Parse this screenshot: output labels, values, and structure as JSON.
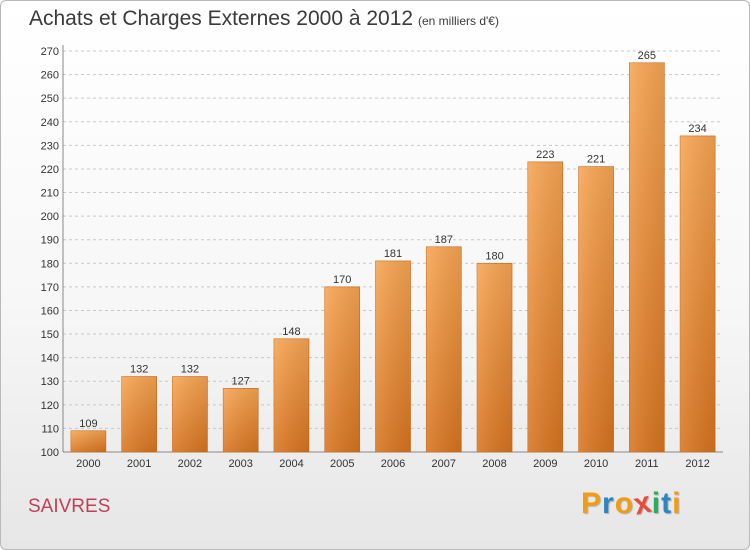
{
  "header": {
    "title": "Achats et Charges Externes 2000 à 2012",
    "subtitle": "(en milliers d'€)"
  },
  "footer": {
    "commune": "SAIVRES",
    "logo": {
      "letters": [
        "P",
        "r",
        "o",
        "x",
        "i",
        "t",
        "i"
      ],
      "colors": [
        "#f39c12",
        "#2e86c1",
        "#f39c12",
        "#e74c3c",
        "#27ae60",
        "#2e86c1",
        "#f39c12"
      ]
    }
  },
  "chart_data": {
    "type": "bar",
    "categories": [
      "2000",
      "2001",
      "2002",
      "2003",
      "2004",
      "2005",
      "2006",
      "2007",
      "2008",
      "2009",
      "2010",
      "2011",
      "2012"
    ],
    "values": [
      109,
      132,
      132,
      127,
      148,
      170,
      181,
      187,
      180,
      223,
      221,
      265,
      234
    ],
    "ylim": [
      100,
      270
    ],
    "yticks": [
      100,
      110,
      120,
      130,
      140,
      150,
      160,
      170,
      180,
      190,
      200,
      210,
      220,
      230,
      240,
      250,
      260,
      270
    ],
    "grid": "horizontal-dashed",
    "bar_color_top": "#f7a552",
    "bar_color_bottom": "#d8741f"
  }
}
